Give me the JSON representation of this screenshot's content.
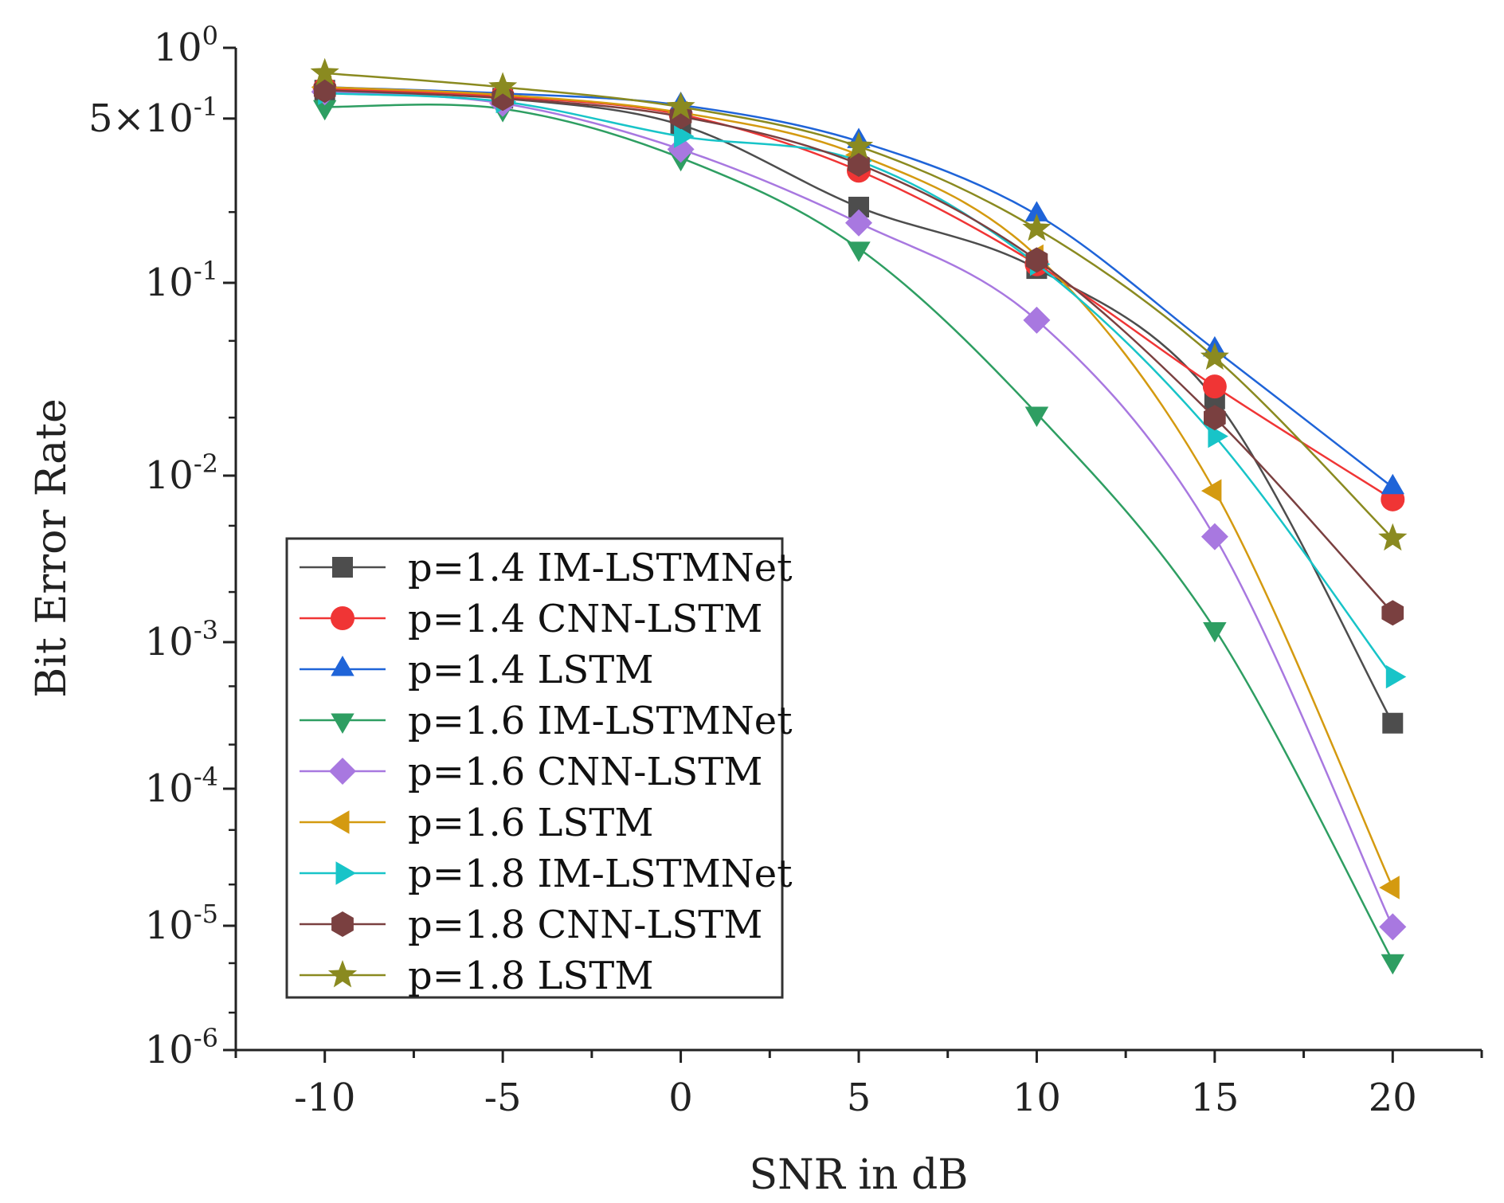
{
  "chart_data": {
    "type": "line",
    "xlabel": "SNR in dB",
    "ylabel": "Bit Error Rate",
    "yscale": "log",
    "xlim": [
      -12.5,
      22.5
    ],
    "ylim": [
      1e-06,
      1
    ],
    "x_ticks": [
      -10,
      -5,
      0,
      5,
      10,
      15,
      20
    ],
    "x_tick_labels": [
      "-10",
      "-5",
      "0",
      "5",
      "10",
      "15",
      "20"
    ],
    "y_ticks": [
      {
        "value": 1,
        "base": "10",
        "exp": "0"
      },
      {
        "value": 0.5,
        "base": "5×10",
        "exp": "-1"
      },
      {
        "value": 0.1,
        "base": "10",
        "exp": "-1"
      },
      {
        "value": 0.01,
        "base": "10",
        "exp": "-2"
      },
      {
        "value": 0.001,
        "base": "10",
        "exp": "-3"
      },
      {
        "value": 0.0001,
        "base": "10",
        "exp": "-4"
      },
      {
        "value": 1e-05,
        "base": "10",
        "exp": "-5"
      },
      {
        "value": 1e-06,
        "base": "10",
        "exp": "-6"
      }
    ],
    "legend_position": "bottom-left",
    "x": [
      -10,
      -5,
      0,
      5,
      10,
      15,
      20
    ],
    "series": [
      {
        "name": "p=1.4 IM-LSTMNet",
        "color": "#4d4d4d",
        "marker": "square",
        "values": [
          0.66,
          0.61,
          0.47,
          0.21,
          0.115,
          0.025,
          0.00028
        ]
      },
      {
        "name": "p=1.4 CNN-LSTM",
        "color": "#f03535",
        "marker": "circle",
        "values": [
          0.67,
          0.62,
          0.52,
          0.3,
          0.12,
          0.029,
          0.0072
        ]
      },
      {
        "name": "p=1.4 LSTM",
        "color": "#1f64d8",
        "marker": "triangle-up",
        "values": [
          0.68,
          0.64,
          0.57,
          0.4,
          0.195,
          0.045,
          0.0085
        ]
      },
      {
        "name": "p=1.6 IM-LSTMNet",
        "color": "#2e9e62",
        "marker": "triangle-down",
        "values": [
          0.56,
          0.55,
          0.34,
          0.14,
          0.021,
          0.0012,
          5.2e-06
        ]
      },
      {
        "name": "p=1.6 CNN-LSTM",
        "color": "#a878e0",
        "marker": "diamond",
        "values": [
          0.65,
          0.58,
          0.37,
          0.18,
          0.064,
          0.0043,
          9.8e-06
        ]
      },
      {
        "name": "p=1.6 LSTM",
        "color": "#d49a10",
        "marker": "triangle-left",
        "values": [
          0.68,
          0.63,
          0.53,
          0.35,
          0.13,
          0.0081,
          1.9e-05
        ]
      },
      {
        "name": "p=1.8 IM-LSTMNet",
        "color": "#18c4c8",
        "marker": "triangle-right",
        "values": [
          0.64,
          0.59,
          0.42,
          0.33,
          0.12,
          0.016,
          0.00058
        ]
      },
      {
        "name": "p=1.8 CNN-LSTM",
        "color": "#7a4040",
        "marker": "hexagon",
        "values": [
          0.66,
          0.61,
          0.51,
          0.32,
          0.125,
          0.02,
          0.0015
        ]
      },
      {
        "name": "p=1.8 LSTM",
        "color": "#8a8a20",
        "marker": "star",
        "values": [
          0.78,
          0.68,
          0.56,
          0.38,
          0.17,
          0.041,
          0.0042
        ]
      }
    ]
  }
}
